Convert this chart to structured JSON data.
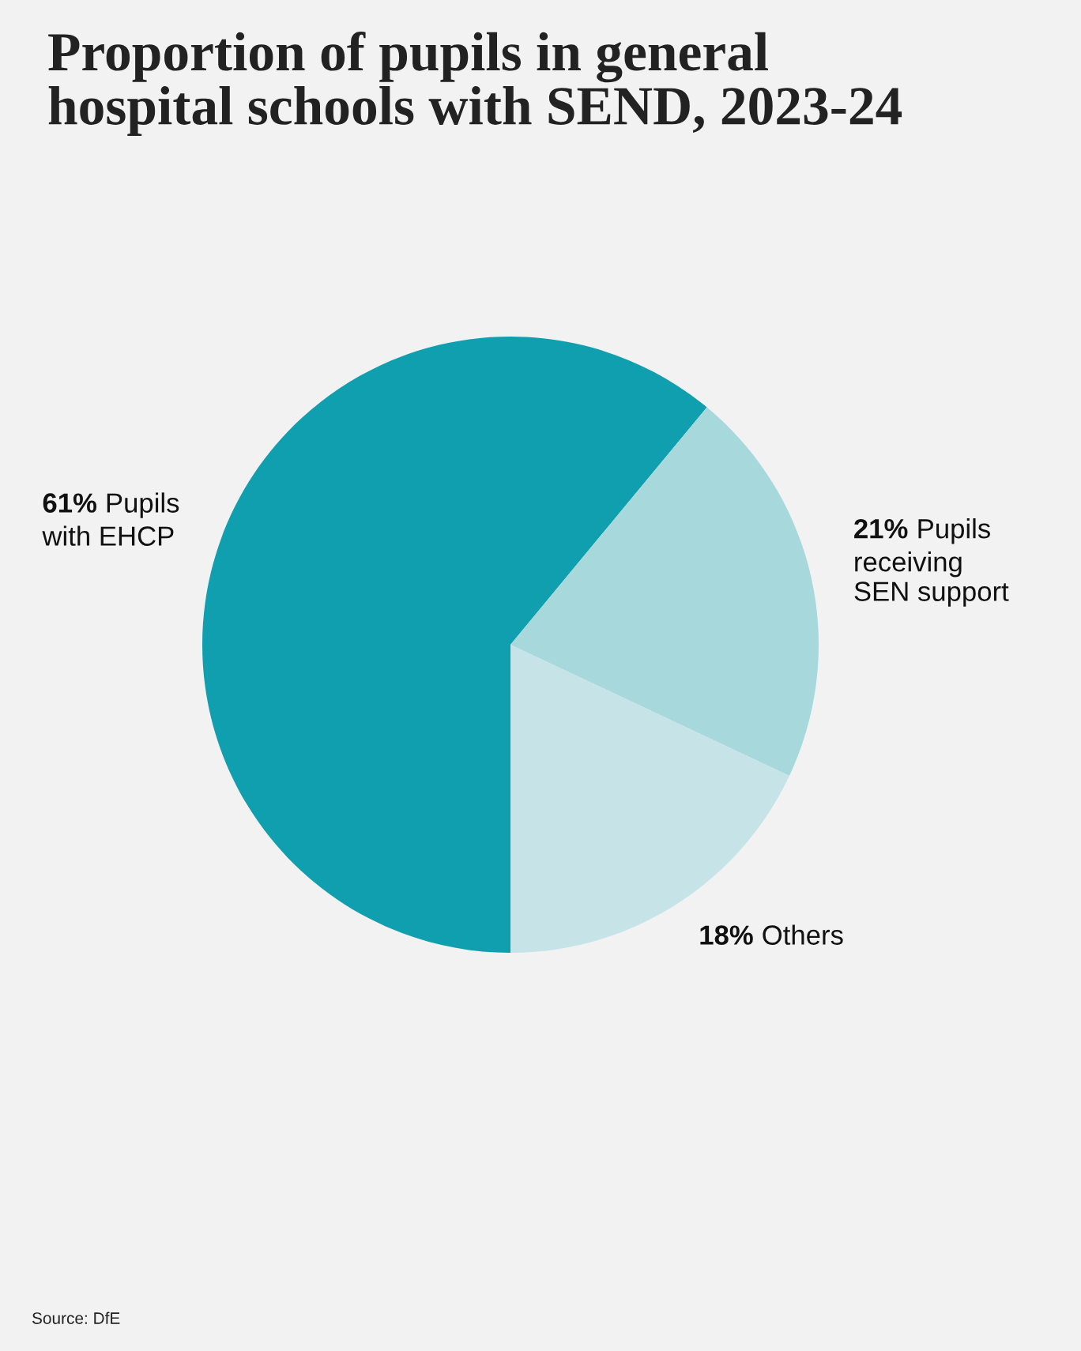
{
  "chart_data": {
    "type": "pie",
    "title": "Proportion of pupils in general\nhospital schools with SEND, 2023-24",
    "categories": [
      "Pupils\nwith EHCP",
      "Pupils\nreceiving\nSEN support",
      "Others"
    ],
    "values": [
      61,
      21,
      18
    ],
    "value_labels": [
      "61%",
      "21%",
      "18%"
    ],
    "colors": [
      "#109fae",
      "#a6d8dc",
      "#c6e4e8"
    ],
    "annotations": [
      "Source: DfE"
    ]
  }
}
